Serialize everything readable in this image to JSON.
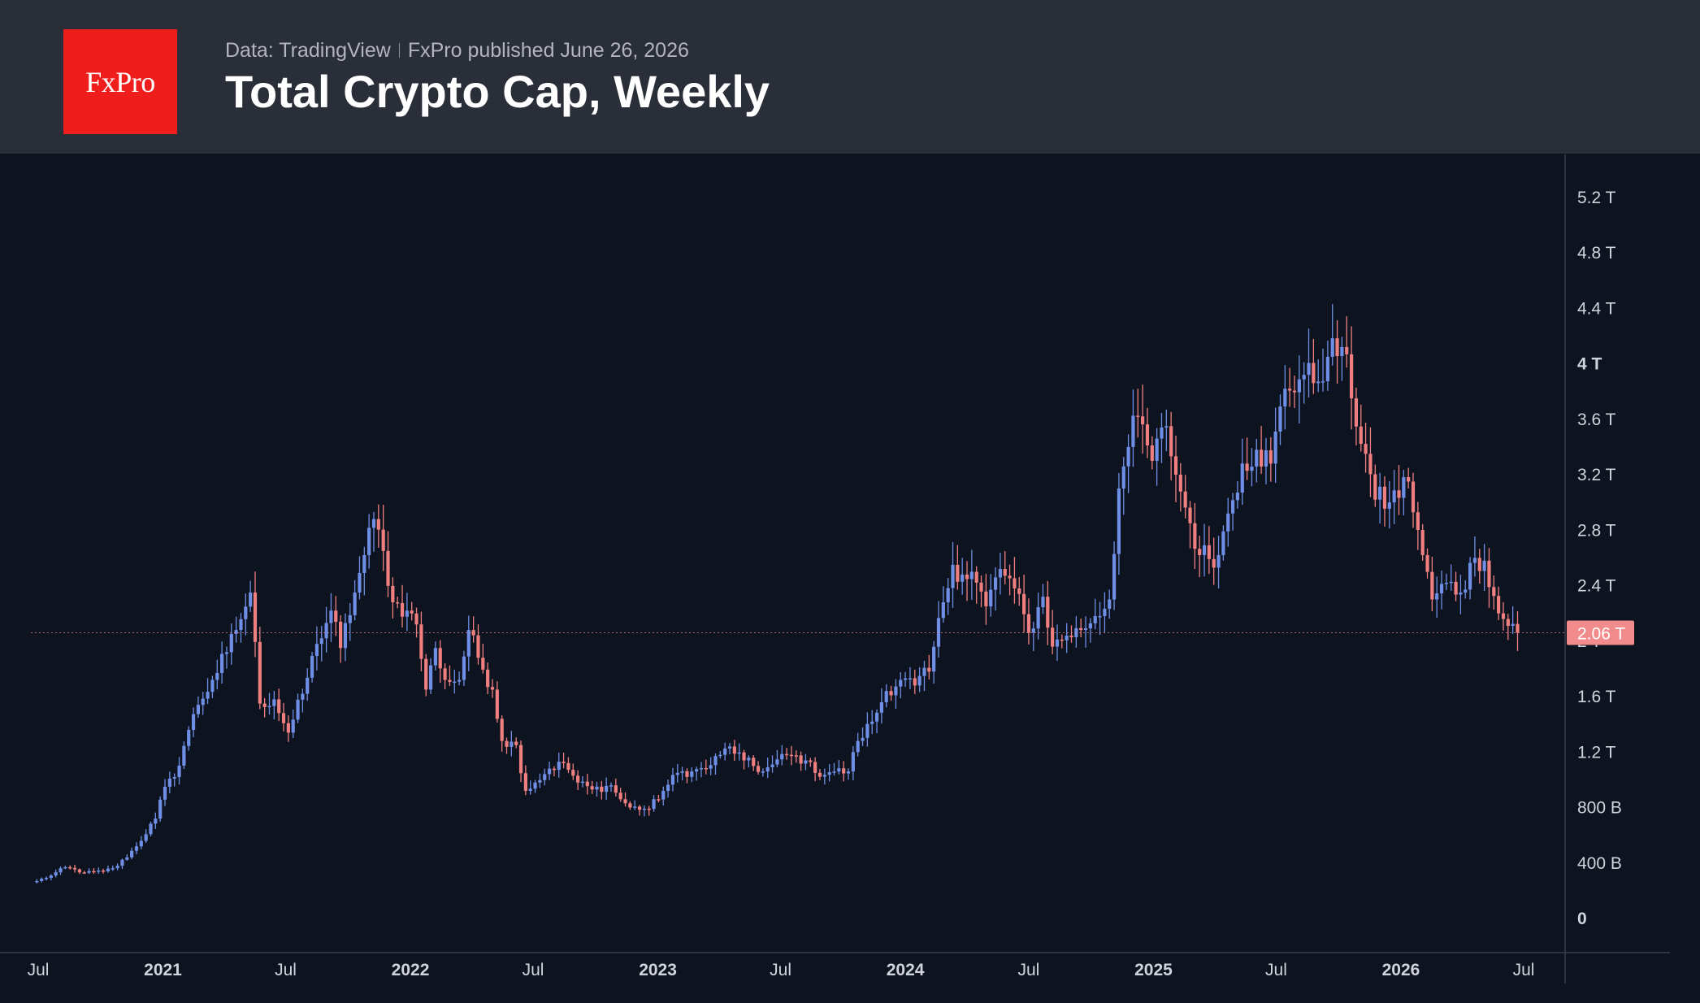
{
  "header": {
    "logo_text": "FxPro",
    "source_text": "Data: TradingView",
    "published_text": "FxPro published June 26, 2026",
    "title": "Total Crypto Cap, Weekly"
  },
  "colors": {
    "header_bg": "#2a2e39",
    "chart_bg": "#0e1320",
    "logo_bg": "#f01d1d",
    "up_candle": "#6f8fe6",
    "down_candle": "#f08080",
    "last_price_tag": "#f28c8c"
  },
  "chart_data": {
    "type": "candlestick",
    "interval": "weekly",
    "title": "Total Crypto Cap, Weekly",
    "x_tick_labels": [
      "Jul",
      "2021",
      "Jul",
      "2022",
      "Jul",
      "2023",
      "Jul",
      "2024",
      "Jul",
      "2025",
      "Jul",
      "2026",
      "Jul"
    ],
    "x_tick_bold": [
      false,
      true,
      false,
      true,
      false,
      true,
      false,
      true,
      false,
      true,
      false,
      true,
      false
    ],
    "y_tick_labels": [
      "0",
      "400 B",
      "800 B",
      "1.2 T",
      "1.6 T",
      "2 T",
      "2.4 T",
      "2.8 T",
      "3.2 T",
      "3.6 T",
      "4 T",
      "4.4 T",
      "4.8 T",
      "5.2 T"
    ],
    "y_tick_values_T": [
      0,
      0.4,
      0.8,
      1.2,
      1.6,
      2.0,
      2.4,
      2.8,
      3.2,
      3.6,
      4.0,
      4.4,
      4.8,
      5.2
    ],
    "y_axis_position": "right",
    "x_range": [
      "2020-07",
      "2026-07"
    ],
    "ylim_T": [
      0,
      5.4
    ],
    "last_price_label": "2.06 T",
    "last_price_T": 2.06,
    "grid": false,
    "close_anchors_T": [
      [
        "2020-06-29",
        0.27
      ],
      [
        "2020-07-20",
        0.31
      ],
      [
        "2020-08-10",
        0.37
      ],
      [
        "2020-09-07",
        0.33
      ],
      [
        "2020-10-05",
        0.34
      ],
      [
        "2020-10-26",
        0.38
      ],
      [
        "2020-11-23",
        0.52
      ],
      [
        "2020-12-21",
        0.72
      ],
      [
        "2021-01-04",
        0.95
      ],
      [
        "2021-01-18",
        1.02
      ],
      [
        "2021-02-08",
        1.36
      ],
      [
        "2021-02-22",
        1.54
      ],
      [
        "2021-03-15",
        1.72
      ],
      [
        "2021-04-05",
        1.92
      ],
      [
        "2021-04-19",
        2.08
      ],
      [
        "2021-05-10",
        2.35
      ],
      [
        "2021-05-24",
        1.55
      ],
      [
        "2021-06-14",
        1.58
      ],
      [
        "2021-07-05",
        1.34
      ],
      [
        "2021-07-26",
        1.62
      ],
      [
        "2021-08-16",
        1.98
      ],
      [
        "2021-09-06",
        2.22
      ],
      [
        "2021-09-20",
        1.95
      ],
      [
        "2021-10-11",
        2.35
      ],
      [
        "2021-10-25",
        2.62
      ],
      [
        "2021-11-08",
        2.88
      ],
      [
        "2021-11-22",
        2.65
      ],
      [
        "2021-12-06",
        2.28
      ],
      [
        "2021-12-27",
        2.22
      ],
      [
        "2022-01-10",
        2.12
      ],
      [
        "2022-01-24",
        1.65
      ],
      [
        "2022-02-07",
        1.95
      ],
      [
        "2022-02-21",
        1.72
      ],
      [
        "2022-03-14",
        1.72
      ],
      [
        "2022-03-28",
        2.08
      ],
      [
        "2022-04-11",
        1.88
      ],
      [
        "2022-05-02",
        1.65
      ],
      [
        "2022-05-16",
        1.28
      ],
      [
        "2022-06-06",
        1.25
      ],
      [
        "2022-06-20",
        0.92
      ],
      [
        "2022-07-04",
        0.98
      ],
      [
        "2022-07-25",
        1.08
      ],
      [
        "2022-08-15",
        1.12
      ],
      [
        "2022-09-05",
        0.98
      ],
      [
        "2022-09-26",
        0.93
      ],
      [
        "2022-10-24",
        0.96
      ],
      [
        "2022-11-07",
        0.86
      ],
      [
        "2022-11-21",
        0.8
      ],
      [
        "2022-12-19",
        0.79
      ],
      [
        "2023-01-09",
        0.92
      ],
      [
        "2023-01-30",
        1.05
      ],
      [
        "2023-02-20",
        1.06
      ],
      [
        "2023-03-13",
        1.08
      ],
      [
        "2023-04-03",
        1.18
      ],
      [
        "2023-04-17",
        1.24
      ],
      [
        "2023-05-08",
        1.14
      ],
      [
        "2023-06-05",
        1.06
      ],
      [
        "2023-06-19",
        1.11
      ],
      [
        "2023-07-10",
        1.18
      ],
      [
        "2023-08-07",
        1.14
      ],
      [
        "2023-08-21",
        1.05
      ],
      [
        "2023-09-18",
        1.06
      ],
      [
        "2023-10-09",
        1.06
      ],
      [
        "2023-10-23",
        1.28
      ],
      [
        "2023-11-13",
        1.42
      ],
      [
        "2023-12-04",
        1.64
      ],
      [
        "2023-12-25",
        1.72
      ],
      [
        "2024-01-15",
        1.68
      ],
      [
        "2024-02-05",
        1.78
      ],
      [
        "2024-02-26",
        2.28
      ],
      [
        "2024-03-11",
        2.55
      ],
      [
        "2024-03-25",
        2.48
      ],
      [
        "2024-04-08",
        2.5
      ],
      [
        "2024-04-29",
        2.25
      ],
      [
        "2024-05-20",
        2.52
      ],
      [
        "2024-06-10",
        2.38
      ],
      [
        "2024-07-01",
        2.06
      ],
      [
        "2024-07-22",
        2.32
      ],
      [
        "2024-08-05",
        1.96
      ],
      [
        "2024-08-26",
        2.04
      ],
      [
        "2024-09-16",
        2.08
      ],
      [
        "2024-10-07",
        2.18
      ],
      [
        "2024-10-28",
        2.3
      ],
      [
        "2024-11-11",
        3.1
      ],
      [
        "2024-11-25",
        3.4
      ],
      [
        "2024-12-09",
        3.62
      ],
      [
        "2024-12-30",
        3.3
      ],
      [
        "2025-01-20",
        3.55
      ],
      [
        "2025-02-03",
        3.2
      ],
      [
        "2025-02-24",
        2.85
      ],
      [
        "2025-03-10",
        2.62
      ],
      [
        "2025-04-07",
        2.62
      ],
      [
        "2025-04-21",
        2.92
      ],
      [
        "2025-05-12",
        3.28
      ],
      [
        "2025-06-02",
        3.38
      ],
      [
        "2025-06-23",
        3.28
      ],
      [
        "2025-07-14",
        3.82
      ],
      [
        "2025-08-11",
        3.92
      ],
      [
        "2025-08-25",
        3.86
      ],
      [
        "2025-09-15",
        4.05
      ],
      [
        "2025-10-06",
        4.12
      ],
      [
        "2025-10-20",
        3.75
      ],
      [
        "2025-11-10",
        3.35
      ],
      [
        "2025-11-24",
        3.02
      ],
      [
        "2025-12-15",
        3.0
      ],
      [
        "2026-01-12",
        3.15
      ],
      [
        "2026-02-02",
        2.62
      ],
      [
        "2026-02-16",
        2.3
      ],
      [
        "2026-03-09",
        2.42
      ],
      [
        "2026-03-30",
        2.35
      ],
      [
        "2026-04-20",
        2.6
      ],
      [
        "2026-05-04",
        2.58
      ],
      [
        "2026-05-25",
        2.2
      ],
      [
        "2026-06-22",
        2.06
      ]
    ]
  }
}
